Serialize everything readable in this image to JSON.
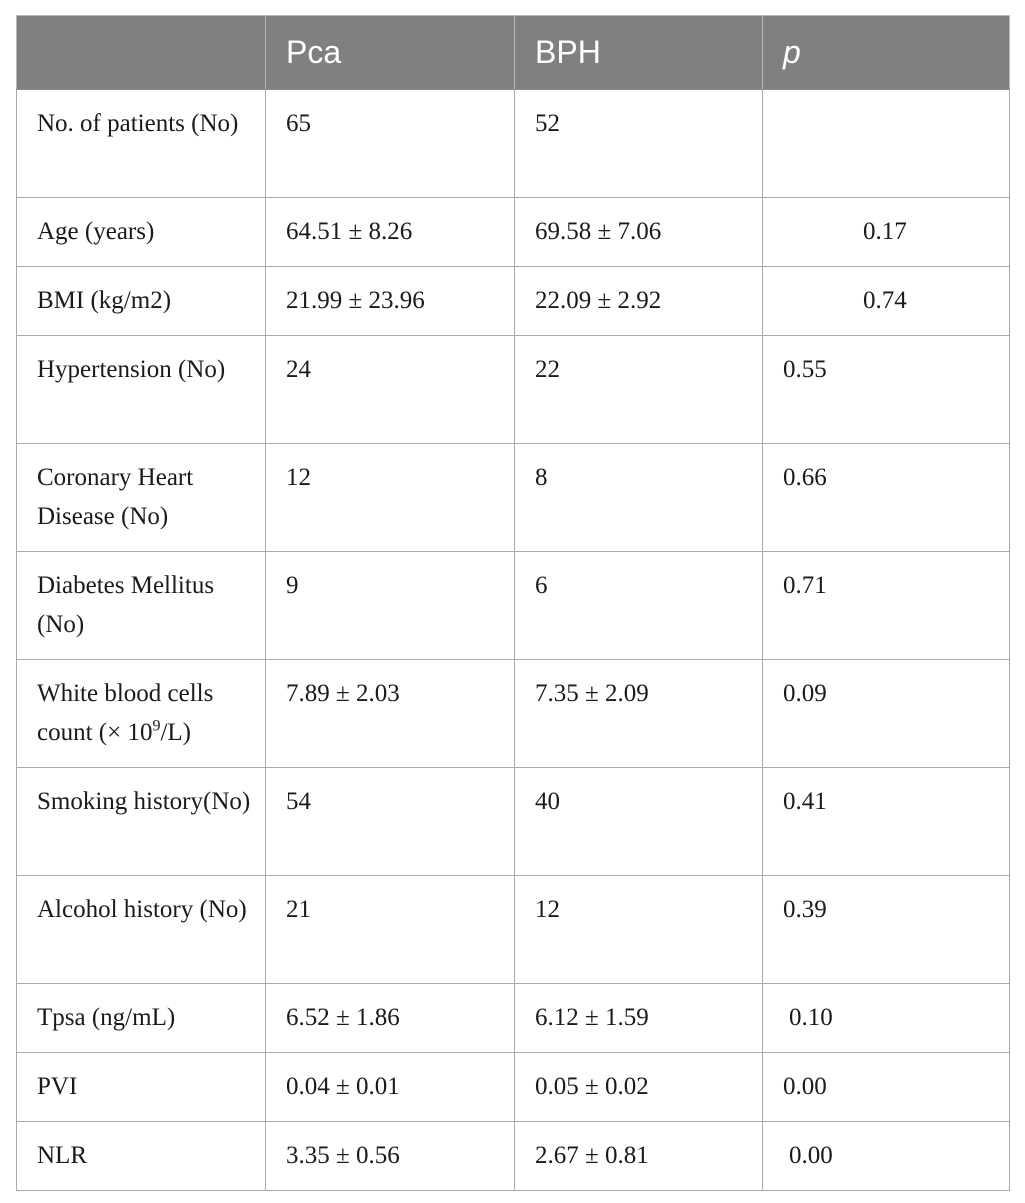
{
  "table": {
    "headers": [
      "",
      "Pca",
      "BPH",
      "p"
    ],
    "rows": [
      {
        "label": "No. of patients (No)",
        "pca": "65",
        "bph": "52",
        "p": ""
      },
      {
        "label": "Age (years)",
        "pca": "64.51 ± 8.26",
        "bph": "69.58 ± 7.06",
        "p": "0.17"
      },
      {
        "label": "BMI (kg/m2)",
        "pca": "21.99 ± 23.96",
        "bph": "22.09 ± 2.92",
        "p": "0.74"
      },
      {
        "label": "Hypertension (No)",
        "pca": "24",
        "bph": "22",
        "p": "0.55"
      },
      {
        "label": "Coronary Heart Disease (No)",
        "pca": "12",
        "bph": "8",
        "p": "0.66"
      },
      {
        "label": "Diabetes Mellitus (No)",
        "pca": "9",
        "bph": "6",
        "p": "0.71"
      },
      {
        "label": "White blood cells count (× 10",
        "label_sup": "9",
        "label_suffix": "/L)",
        "pca": "7.89 ± 2.03",
        "bph": "7.35 ± 2.09",
        "p": "0.09"
      },
      {
        "label": "Smoking history(No)",
        "pca": "54",
        "bph": "40",
        "p": "0.41"
      },
      {
        "label": "Alcohol history (No)",
        "pca": "21",
        "bph": "12",
        "p": "0.39"
      },
      {
        "label": "Tpsa (ng/mL)",
        "pca": "6.52 ± 1.86",
        "bph": "6.12 ± 1.59",
        "p": "0.10"
      },
      {
        "label": "PVI",
        "pca": "0.04 ± 0.01",
        "bph": "0.05 ± 0.02",
        "p": "0.00"
      },
      {
        "label": "NLR",
        "pca": "3.35 ± 0.56",
        "bph": "2.67 ± 0.81",
        "p": "0.00"
      }
    ]
  }
}
